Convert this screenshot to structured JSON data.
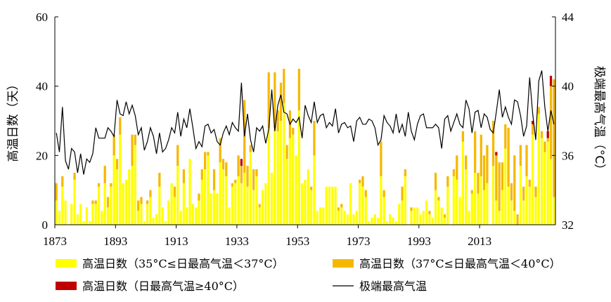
{
  "chart_data": {
    "type": "bar",
    "stacked": true,
    "x_start": 1873,
    "x_end": 2020,
    "xticks": [
      1873,
      1893,
      1913,
      1933,
      1953,
      1973,
      1993,
      2013
    ],
    "ylabel_left": "高温日数（天）",
    "ylabel_right": "极端最高气温（°C）",
    "ylim_left": [
      0,
      60
    ],
    "yticks_left": [
      0,
      20,
      40,
      60
    ],
    "ylim_right": [
      32,
      44
    ],
    "yticks_right": [
      32,
      36,
      40,
      44
    ],
    "grid": false,
    "legend_position": "bottom",
    "series": [
      {
        "name": "高温日数（35°C≤日最高气温＜37°C）",
        "color": "#ffff00",
        "axis": "left",
        "values": [
          7,
          4,
          11,
          7,
          0,
          6,
          13,
          3,
          6,
          1,
          5,
          1,
          6,
          6,
          11,
          4,
          12,
          5,
          11,
          20,
          16,
          26,
          12,
          13,
          16,
          17,
          23,
          4,
          6,
          1,
          6,
          8,
          2,
          3,
          11,
          5,
          1,
          7,
          12,
          8,
          17,
          4,
          12,
          5,
          19,
          6,
          5,
          7,
          13,
          16,
          20,
          9,
          10,
          9,
          18,
          16,
          14,
          5,
          11,
          12,
          14,
          12,
          15,
          11,
          21,
          10,
          14,
          5,
          10,
          12,
          28,
          15,
          28,
          27,
          30,
          35,
          19,
          25,
          26,
          20,
          33,
          12,
          13,
          16,
          10,
          20,
          4,
          5,
          5,
          11,
          11,
          11,
          11,
          4,
          5,
          4,
          3,
          12,
          3,
          4,
          12,
          11,
          8,
          1,
          2,
          3,
          2,
          14,
          8,
          1,
          3,
          2,
          1,
          6,
          7,
          14,
          0,
          4,
          5,
          5,
          3,
          4,
          7,
          3,
          2,
          10,
          7,
          5,
          2,
          11,
          0,
          14,
          13,
          8,
          24,
          16,
          4,
          9,
          15,
          9,
          14,
          10,
          12,
          0,
          17,
          7,
          4,
          10,
          22,
          11,
          7,
          4,
          0,
          17,
          7,
          14,
          11,
          26,
          8,
          32,
          25,
          21,
          24,
          19,
          8
        ]
      },
      {
        "name": "高温日数（37°C≤日最高气温＜40°C）",
        "color": "#f5b800",
        "axis": "left",
        "values": [
          5,
          0,
          3,
          0,
          0,
          0,
          2,
          0,
          0,
          0,
          0,
          0,
          1,
          1,
          1,
          0,
          5,
          3,
          1,
          6,
          3,
          5,
          0,
          0,
          0,
          9,
          3,
          3,
          2,
          0,
          1,
          2,
          0,
          0,
          4,
          0,
          0,
          0,
          0,
          3,
          6,
          0,
          4,
          0,
          0,
          0,
          0,
          2,
          3,
          5,
          1,
          0,
          6,
          0,
          7,
          3,
          4,
          0,
          1,
          1,
          6,
          5,
          21,
          6,
          2,
          6,
          2,
          1,
          0,
          0,
          16,
          0,
          16,
          6,
          11,
          10,
          4,
          8,
          2,
          0,
          12,
          0,
          0,
          0,
          1,
          10,
          0,
          0,
          0,
          0,
          0,
          0,
          0,
          1,
          1,
          0,
          0,
          0,
          0,
          0,
          1,
          3,
          2,
          0,
          0,
          0,
          0,
          10,
          2,
          0,
          0,
          0,
          0,
          0,
          4,
          2,
          0,
          1,
          0,
          0,
          0,
          0,
          0,
          1,
          0,
          5,
          1,
          0,
          1,
          3,
          0,
          2,
          7,
          0,
          3,
          4,
          0,
          1,
          12,
          6,
          12,
          10,
          11,
          0,
          13,
          13,
          14,
          8,
          7,
          17,
          5,
          16,
          3,
          6,
          4,
          9,
          2,
          3,
          3,
          2,
          2,
          3,
          1,
          21,
          34
        ]
      },
      {
        "name": "高温日数（日最高气温≥40°C）",
        "color": "#c00000",
        "axis": "left",
        "values": [
          0,
          0,
          0,
          0,
          0,
          0,
          0,
          0,
          0,
          0,
          0,
          0,
          0,
          0,
          0,
          0,
          0,
          0,
          0,
          0,
          0,
          0,
          0,
          0,
          0,
          0,
          0,
          0,
          0,
          0,
          0,
          0,
          0,
          0,
          0,
          0,
          0,
          0,
          0,
          0,
          0,
          0,
          0,
          0,
          0,
          0,
          0,
          0,
          0,
          0,
          0,
          0,
          0,
          0,
          0,
          0,
          0,
          0,
          0,
          0,
          0,
          2,
          0,
          0,
          0,
          0,
          0,
          0,
          0,
          0,
          0,
          0,
          0,
          0,
          0,
          0,
          0,
          0,
          0,
          0,
          0,
          0,
          0,
          0,
          0,
          0,
          0,
          0,
          0,
          0,
          0,
          0,
          0,
          0,
          0,
          0,
          0,
          0,
          0,
          0,
          0,
          0,
          0,
          0,
          0,
          0,
          0,
          0,
          0,
          0,
          0,
          0,
          0,
          0,
          0,
          0,
          0,
          0,
          0,
          0,
          0,
          0,
          0,
          0,
          0,
          0,
          0,
          0,
          0,
          0,
          0,
          0,
          0,
          0,
          0,
          0,
          0,
          0,
          0,
          0,
          0,
          0,
          0,
          0,
          0,
          1,
          0,
          0,
          0,
          0,
          0,
          0,
          0,
          0,
          0,
          0,
          0,
          1,
          0,
          0,
          0,
          0,
          2,
          3,
          0,
          0,
          0,
          0,
          7,
          0
        ]
      },
      {
        "name": "极端最高气温",
        "color": "#000000",
        "type": "line",
        "axis": "right",
        "values": [
          37.3,
          36.2,
          38.8,
          35.7,
          35.2,
          36.4,
          36.2,
          35,
          36.1,
          34.9,
          35.8,
          35.6,
          36.1,
          37.6,
          37,
          37,
          37,
          37.6,
          37.4,
          37.1,
          39.2,
          38.4,
          38.3,
          39.1,
          38.4,
          38.9,
          38.3,
          37.2,
          37.6,
          36.3,
          36.8,
          37.6,
          37.1,
          36.1,
          37.3,
          36.2,
          36.4,
          36.9,
          37.6,
          37.3,
          38.5,
          37.1,
          38.1,
          37.6,
          38.7,
          37.6,
          36.4,
          36.8,
          36.5,
          37.7,
          37.8,
          37.3,
          37.5,
          36.8,
          36.6,
          37.3,
          37.7,
          37.2,
          37.9,
          37.6,
          37.4,
          40.2,
          37.1,
          38.4,
          36.9,
          36.2,
          37.6,
          37.4,
          37.7,
          36.7,
          37.5,
          39.8,
          37.4,
          38.9,
          39.5,
          38.5,
          38.4,
          37.8,
          38.1,
          37.9,
          38.2,
          37,
          38.9,
          38.3,
          37.9,
          39.1,
          37.9,
          38.3,
          38.4,
          37.6,
          37.9,
          37.7,
          38.7,
          37.3,
          37.8,
          37.9,
          37.6,
          37.7,
          36.8,
          38,
          38.2,
          37.8,
          37.8,
          38.1,
          38,
          37.6,
          36.6,
          36.9,
          38.3,
          37.9,
          37.7,
          37.3,
          38.4,
          37.3,
          37.8,
          37.1,
          38.5,
          37.4,
          36.9,
          37.8,
          38.3,
          38.4,
          37.6,
          37.6,
          37.6,
          37.8,
          37.6,
          36.4,
          38.1,
          38.3,
          37.4,
          37.9,
          38.4,
          37.8,
          37.6,
          39.2,
          38.7,
          37.3,
          38.5,
          38.6,
          37.6,
          38.4,
          38.2,
          37.5,
          37.3,
          38.5,
          39.8,
          38.2,
          38.8,
          38.2,
          37.8,
          39.2,
          39.1,
          38.3,
          37.1,
          37.7,
          40.5,
          38.4,
          36.9,
          40.3,
          40.9,
          38.8,
          37.4,
          38.6,
          37.8
        ]
      }
    ]
  }
}
